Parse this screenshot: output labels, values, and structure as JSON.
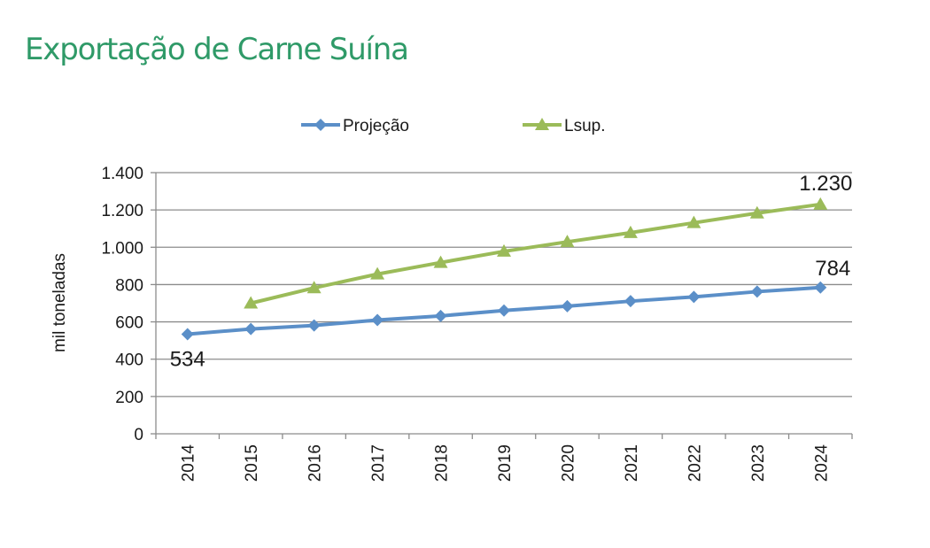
{
  "page": {
    "title": "Exportação de Carne Suína"
  },
  "chart_data": {
    "type": "line",
    "title": "",
    "xlabel": "",
    "ylabel": "mil toneladas",
    "categories": [
      "2014",
      "2015",
      "2016",
      "2017",
      "2018",
      "2019",
      "2020",
      "2021",
      "2022",
      "2023",
      "2024"
    ],
    "ylim": [
      0,
      1400
    ],
    "yticks": [
      0,
      200,
      400,
      600,
      800,
      1000,
      1200,
      1400
    ],
    "ytick_labels": [
      "0",
      "200",
      "400",
      "600",
      "800",
      "1.000",
      "1.200",
      "1.400"
    ],
    "grid": true,
    "legend_position": "top-center",
    "series": [
      {
        "name": "Projeção",
        "color": "#5b8fc8",
        "marker": "diamond",
        "values": [
          534,
          562,
          581,
          610,
          632,
          661,
          684,
          711,
          734,
          762,
          784
        ]
      },
      {
        "name": "Lsup.",
        "color": "#9bbb59",
        "marker": "triangle",
        "values": [
          null,
          700,
          782,
          856,
          918,
          978,
          1029,
          1078,
          1131,
          1183,
          1230
        ]
      }
    ],
    "annotations": [
      {
        "series": 0,
        "index": 0,
        "text": "534"
      },
      {
        "series": 0,
        "index": 10,
        "text": "784"
      },
      {
        "series": 1,
        "index": 10,
        "text": "1.230"
      }
    ]
  }
}
